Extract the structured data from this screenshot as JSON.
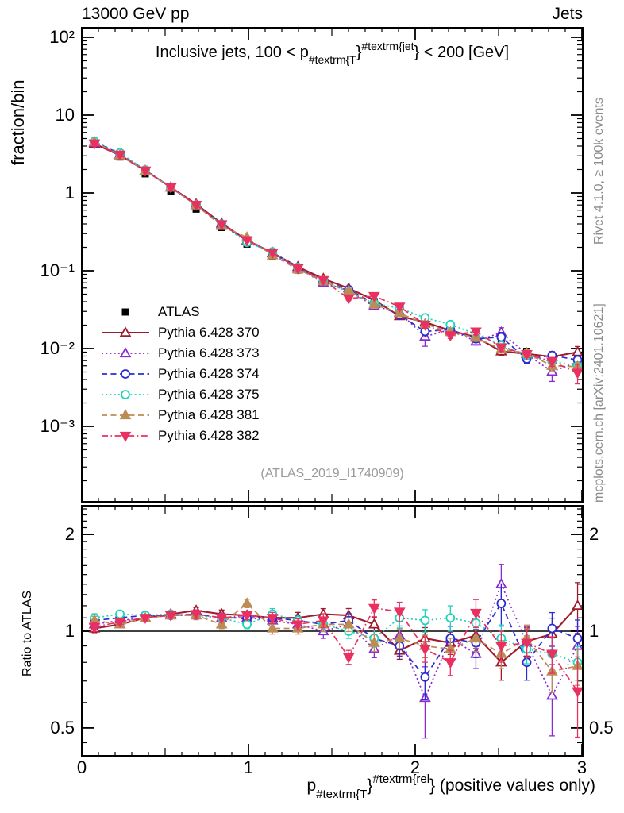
{
  "page": {
    "beam": "13000 GeV pp",
    "process": "Jets",
    "watermark": "(ATLAS_2019_I1740909)",
    "rivet_note": "Rivet 4.1.0, ≥ 100k events",
    "mcplots_note": "mcplots.cern.ch [arXiv:2401.10621]"
  },
  "titles": {
    "main": {
      "pre": "Inclusive jets, 100 < p",
      "sub": "#textrm{T",
      "brace": "}",
      "sup": "#textrm{jet",
      "post": "} < 200 [GeV]"
    },
    "x": {
      "pre": "p",
      "sub": "#textrm{T",
      "brace": "}",
      "sup": "#textrm{rel",
      "post": "} (positive values only)"
    },
    "y_main": "fraction/bin",
    "y_ratio": "Ratio to ATLAS"
  },
  "axes": {
    "x_ticks": [
      "0",
      "1",
      "2",
      "3"
    ],
    "main_y_ticks": [
      "10²",
      "10",
      "1",
      "10⁻¹",
      "10⁻²",
      "10⁻³"
    ],
    "ratio_y_ticks": [
      "2",
      "1",
      "0.5"
    ]
  },
  "chart_data": {
    "type": "line",
    "title": "Inclusive jets, 100 < pT^jet < 200 [GeV]",
    "xlabel": "pT^rel (positive values only)",
    "ylabel_main": "fraction/bin",
    "ylabel_ratio": "Ratio to ATLAS",
    "x_range": [
      0,
      3.05
    ],
    "main_y_log_range": [
      0.00011,
      130
    ],
    "ratio_y_log_range": [
      0.41,
      2.45
    ],
    "grid": false,
    "legend_position": "middle-left",
    "x": [
      0.076,
      0.229,
      0.381,
      0.534,
      0.686,
      0.839,
      0.991,
      1.144,
      1.296,
      1.449,
      1.601,
      1.754,
      1.906,
      2.059,
      2.211,
      2.364,
      2.516,
      2.669,
      2.821,
      2.974
    ],
    "atlas": {
      "label": "ATLAS",
      "color": "#000000",
      "marker": "square-filled",
      "values": [
        4.2,
        2.9,
        1.76,
        1.05,
        0.62,
        0.36,
        0.22,
        0.155,
        0.102,
        0.07,
        0.053,
        0.04,
        0.03,
        0.023,
        0.0185,
        0.0145,
        0.0115,
        0.0092,
        0.008,
        0.0075
      ],
      "rel_err": [
        0.02,
        0.02,
        0.02,
        0.02,
        0.02,
        0.02,
        0.02,
        0.02,
        0.025,
        0.025,
        0.03,
        0.03,
        0.035,
        0.04,
        0.04,
        0.05,
        0.05,
        0.06,
        0.07,
        0.08
      ]
    },
    "series": [
      {
        "label": "Pythia 6.428 370",
        "color": "#9e1b2d",
        "dash": "solid",
        "marker": "triangle-up-open",
        "ratio": [
          1.02,
          1.05,
          1.1,
          1.13,
          1.16,
          1.13,
          1.12,
          1.1,
          1.1,
          1.13,
          1.12,
          1.05,
          0.87,
          0.95,
          0.92,
          0.97,
          0.8,
          0.93,
          0.98,
          1.2
        ],
        "rel_err": [
          0.03,
          0.02,
          0.02,
          0.02,
          0.02,
          0.03,
          0.03,
          0.03,
          0.04,
          0.04,
          0.05,
          0.05,
          0.06,
          0.08,
          0.08,
          0.09,
          0.12,
          0.1,
          0.12,
          0.18
        ]
      },
      {
        "label": "Pythia 6.428 373",
        "color": "#8a2bd0",
        "dash": "dotted",
        "marker": "triangle-up-open",
        "ratio": [
          1.05,
          1.08,
          1.1,
          1.12,
          1.12,
          1.1,
          1.1,
          1.08,
          1.05,
          1.0,
          1.05,
          0.88,
          0.97,
          0.62,
          0.95,
          0.85,
          1.4,
          0.92,
          0.63,
          0.9
        ],
        "rel_err": [
          0.03,
          0.02,
          0.02,
          0.02,
          0.03,
          0.03,
          0.03,
          0.04,
          0.04,
          0.05,
          0.05,
          0.06,
          0.07,
          0.25,
          0.09,
          0.1,
          0.15,
          0.12,
          0.25,
          0.15
        ]
      },
      {
        "label": "Pythia 6.428 374",
        "color": "#2b2bd0",
        "dash": "dashed",
        "marker": "circle-open",
        "ratio": [
          1.08,
          1.1,
          1.12,
          1.12,
          1.13,
          1.1,
          1.1,
          1.1,
          1.08,
          1.05,
          1.08,
          0.95,
          0.9,
          0.72,
          0.95,
          0.92,
          1.22,
          0.8,
          1.02,
          0.95
        ],
        "rel_err": [
          0.03,
          0.02,
          0.02,
          0.02,
          0.03,
          0.03,
          0.03,
          0.04,
          0.04,
          0.05,
          0.05,
          0.06,
          0.07,
          0.15,
          0.09,
          0.1,
          0.15,
          0.12,
          0.12,
          0.14
        ]
      },
      {
        "label": "Pythia 6.428 375",
        "color": "#1ed3b9",
        "dash": "dotted",
        "marker": "circle-open",
        "ratio": [
          1.1,
          1.13,
          1.12,
          1.13,
          1.12,
          1.1,
          1.05,
          1.13,
          1.08,
          1.05,
          1.0,
          0.95,
          1.1,
          1.08,
          1.1,
          1.06,
          0.95,
          0.88,
          0.85,
          0.8
        ],
        "rel_err": [
          0.03,
          0.02,
          0.02,
          0.02,
          0.03,
          0.03,
          0.03,
          0.04,
          0.04,
          0.05,
          0.05,
          0.06,
          0.07,
          0.08,
          0.09,
          0.09,
          0.1,
          0.1,
          0.12,
          0.12
        ]
      },
      {
        "label": "Pythia 6.428 381",
        "color": "#bd8c55",
        "dash": "dashed",
        "marker": "triangle-up-filled",
        "ratio": [
          1.08,
          1.05,
          1.1,
          1.12,
          1.12,
          1.05,
          1.22,
          1.02,
          1.02,
          1.05,
          1.05,
          0.92,
          0.95,
          0.9,
          0.88,
          0.95,
          0.85,
          0.95,
          0.75,
          0.78
        ],
        "rel_err": [
          0.03,
          0.02,
          0.02,
          0.02,
          0.03,
          0.03,
          0.03,
          0.04,
          0.04,
          0.05,
          0.05,
          0.06,
          0.07,
          0.08,
          0.08,
          0.09,
          0.1,
          0.1,
          0.14,
          0.13
        ]
      },
      {
        "label": "Pythia 6.428 382",
        "color": "#e93061",
        "dash": "dashdot",
        "marker": "triangle-down-filled",
        "ratio": [
          1.03,
          1.07,
          1.1,
          1.12,
          1.13,
          1.1,
          1.12,
          1.1,
          1.05,
          1.08,
          0.83,
          1.18,
          1.15,
          0.88,
          0.8,
          1.14,
          0.9,
          0.92,
          0.85,
          0.65
        ],
        "rel_err": [
          0.03,
          0.02,
          0.02,
          0.02,
          0.03,
          0.03,
          0.03,
          0.04,
          0.04,
          0.05,
          0.05,
          0.06,
          0.07,
          0.09,
          0.09,
          0.1,
          0.11,
          0.1,
          0.13,
          0.28
        ]
      }
    ]
  }
}
